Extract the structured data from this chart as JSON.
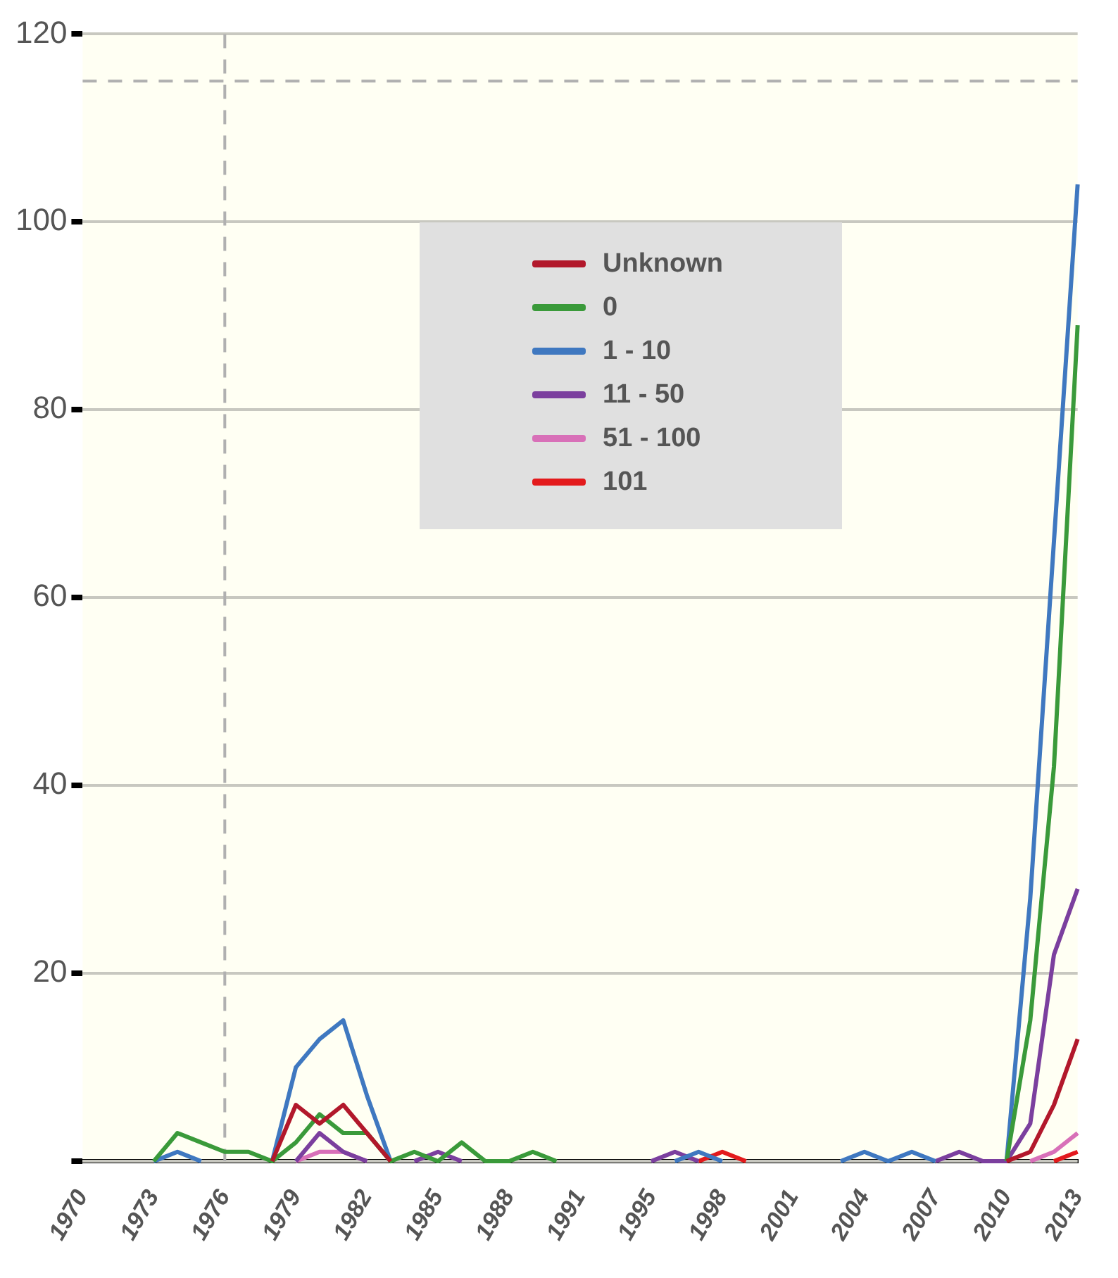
{
  "chart_data": {
    "type": "line",
    "categories": [
      "1970",
      null,
      null,
      "1973",
      null,
      null,
      "1976",
      null,
      null,
      "1979",
      null,
      null,
      "1982",
      null,
      null,
      "1985",
      null,
      null,
      "1988",
      null,
      null,
      "1991",
      null,
      null,
      "1995",
      null,
      null,
      "1998",
      null,
      null,
      "2001",
      null,
      null,
      "2004",
      null,
      null,
      "2007",
      null,
      null,
      "2010",
      null,
      null,
      "2013"
    ],
    "series": [
      {
        "name": "Unknown",
        "color": "#b2182b",
        "values": [
          null,
          null,
          null,
          null,
          null,
          null,
          null,
          null,
          0,
          6,
          4,
          6,
          3,
          0,
          null,
          null,
          null,
          null,
          null,
          null,
          null,
          null,
          null,
          null,
          null,
          null,
          null,
          null,
          null,
          null,
          null,
          null,
          null,
          null,
          null,
          null,
          null,
          null,
          null,
          0,
          1,
          6,
          13
        ]
      },
      {
        "name": "0",
        "color": "#3a9a3a",
        "values": [
          null,
          null,
          null,
          0,
          3,
          2,
          1,
          1,
          0,
          2,
          5,
          3,
          3,
          0,
          1,
          0,
          2,
          0,
          0,
          1,
          0,
          null,
          null,
          null,
          null,
          null,
          null,
          null,
          null,
          null,
          null,
          null,
          null,
          null,
          null,
          null,
          null,
          null,
          null,
          0,
          15,
          42,
          89
        ]
      },
      {
        "name": "1 - 10",
        "color": "#3f78c0",
        "values": [
          null,
          null,
          null,
          0,
          1,
          0,
          null,
          null,
          0,
          10,
          13,
          15,
          7,
          0,
          null,
          null,
          null,
          null,
          null,
          null,
          null,
          null,
          null,
          null,
          null,
          0,
          1,
          0,
          null,
          null,
          null,
          null,
          0,
          1,
          0,
          1,
          0,
          null,
          null,
          0,
          28,
          66,
          104
        ]
      },
      {
        "name": "11 - 50",
        "color": "#7b3f9e",
        "values": [
          null,
          null,
          null,
          null,
          null,
          null,
          null,
          null,
          null,
          0,
          3,
          1,
          0,
          null,
          0,
          1,
          0,
          null,
          null,
          null,
          null,
          null,
          null,
          null,
          0,
          1,
          0,
          null,
          null,
          null,
          null,
          null,
          null,
          null,
          null,
          null,
          0,
          1,
          0,
          0,
          4,
          22,
          29
        ]
      },
      {
        "name": "51 - 100",
        "color": "#d870b8",
        "values": [
          null,
          null,
          null,
          null,
          null,
          null,
          null,
          null,
          null,
          0,
          1,
          1,
          0,
          null,
          null,
          null,
          null,
          null,
          null,
          null,
          null,
          null,
          null,
          null,
          null,
          null,
          null,
          null,
          null,
          null,
          null,
          null,
          null,
          null,
          null,
          null,
          null,
          null,
          null,
          null,
          0,
          1,
          3
        ]
      },
      {
        "name": "101",
        "color": "#e31a1c",
        "values": [
          null,
          null,
          null,
          null,
          null,
          null,
          null,
          null,
          null,
          null,
          null,
          null,
          null,
          null,
          null,
          null,
          null,
          null,
          null,
          null,
          null,
          null,
          null,
          null,
          null,
          null,
          0,
          1,
          0,
          null,
          null,
          null,
          null,
          null,
          null,
          null,
          null,
          null,
          null,
          null,
          null,
          0,
          1
        ]
      }
    ],
    "ylim": [
      0,
      120
    ],
    "yticks": [
      {
        "value": 0,
        "label": null
      },
      20,
      40,
      60,
      80,
      100,
      120
    ],
    "grid": "y",
    "legend": "top",
    "ref_lines": [
      {
        "axis": "y",
        "value": 115,
        "line_style": "dashed"
      },
      {
        "axis": "x",
        "value": "1976",
        "line_style": "dashed"
      }
    ]
  }
}
